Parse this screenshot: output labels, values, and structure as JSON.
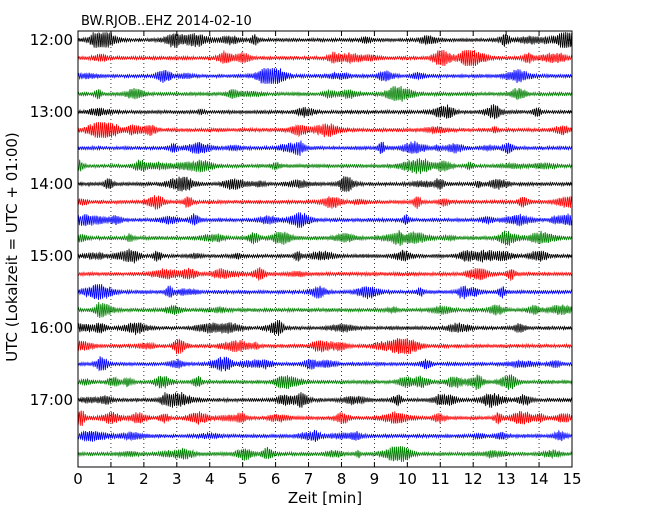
{
  "chart_data": {
    "type": "line",
    "title": "BW.RJOB..EHZ 2014-02-10",
    "xlabel": "Zeit  [min]",
    "ylabel": "UTC (Lokalzeit = UTC + 01:00)",
    "xlim": [
      0,
      15
    ],
    "x_ticks": [
      "0",
      "1",
      "2",
      "3",
      "4",
      "5",
      "6",
      "7",
      "8",
      "9",
      "10",
      "11",
      "12",
      "13",
      "14",
      "15"
    ],
    "y_tick_labels": [
      "12:00",
      "13:00",
      "14:00",
      "15:00",
      "16:00",
      "17:00"
    ],
    "start_time": "12:00",
    "minutes_per_line": 15,
    "line_count": 24,
    "trace_colors": [
      "#000000",
      "#ff0000",
      "#0000ff",
      "#008000"
    ],
    "grid": "vertical dotted lines at each minute",
    "legend": "none"
  }
}
